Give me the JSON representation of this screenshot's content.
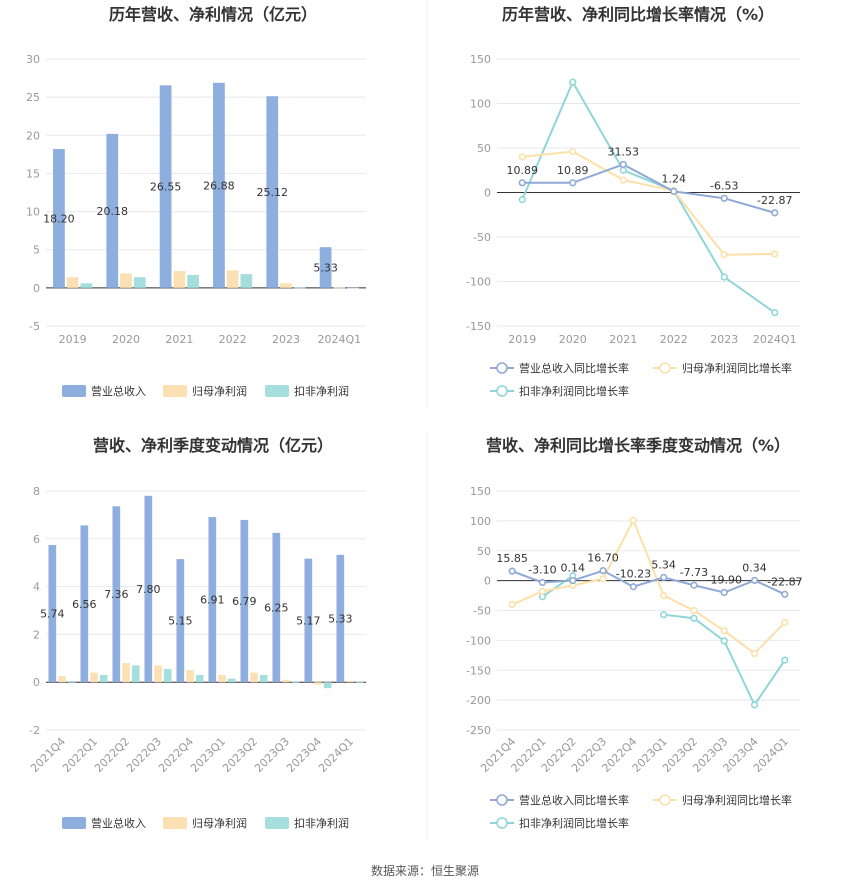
{
  "source": "数据来源：恒生聚源",
  "colors": {
    "revenue": "#8eaedd",
    "net_profit": "#fbe0b4",
    "deducted_profit": "#a5dedd",
    "revenue_line": "#8fa9d6",
    "net_line": "#fde0a8",
    "deducted_line": "#8fd6d8"
  },
  "chart_data": [
    {
      "type": "bar",
      "title": "历年营收、净利情况（亿元）",
      "categories": [
        "2019",
        "2020",
        "2021",
        "2022",
        "2023",
        "2024Q1"
      ],
      "ylim": [
        -5,
        30
      ],
      "yticks": [
        -5,
        0,
        5,
        10,
        15,
        20,
        25,
        30
      ],
      "grid": true,
      "legend_position": "bottom",
      "series": [
        {
          "name": "营业总收入",
          "values": [
            18.2,
            20.18,
            26.55,
            26.88,
            25.12,
            5.33
          ],
          "labels": [
            "18.20",
            "20.18",
            "26.55",
            "26.88",
            "25.12",
            "5.33"
          ]
        },
        {
          "name": "归母净利润",
          "values": [
            1.4,
            1.9,
            2.2,
            2.3,
            0.6,
            0.05
          ]
        },
        {
          "name": "扣非净利润",
          "values": [
            0.6,
            1.4,
            1.7,
            1.8,
            0.05,
            0.02
          ]
        }
      ]
    },
    {
      "type": "line",
      "title": "历年营收、净利同比增长率情况（%）",
      "categories": [
        "2019",
        "2020",
        "2021",
        "2022",
        "2023",
        "2024Q1"
      ],
      "ylim": [
        -150,
        150
      ],
      "yticks": [
        -150,
        -100,
        -50,
        0,
        50,
        100,
        150
      ],
      "grid": true,
      "legend_position": "bottom",
      "series": [
        {
          "name": "营业总收入同比增长率",
          "values": [
            10.89,
            10.89,
            31.53,
            1.24,
            -6.53,
            -22.87
          ],
          "labels": [
            "10.89",
            "10.89",
            "31.53",
            "1.24",
            "-6.53",
            "-22.87"
          ]
        },
        {
          "name": "归母净利润同比增长率",
          "values": [
            40,
            46,
            14,
            2,
            -70,
            -69
          ]
        },
        {
          "name": "扣非净利润同比增长率",
          "values": [
            -8,
            124,
            25,
            2,
            -95,
            -135
          ]
        }
      ]
    },
    {
      "type": "bar",
      "title": "营收、净利季度变动情况（亿元）",
      "categories": [
        "2021Q4",
        "2022Q1",
        "2022Q2",
        "2022Q3",
        "2022Q4",
        "2023Q1",
        "2023Q2",
        "2023Q3",
        "2023Q4",
        "2024Q1"
      ],
      "ylim": [
        -2,
        8
      ],
      "yticks": [
        -2,
        0,
        2,
        4,
        6,
        8
      ],
      "grid": true,
      "legend_position": "bottom",
      "series": [
        {
          "name": "营业总收入",
          "values": [
            5.74,
            6.56,
            7.36,
            7.8,
            5.15,
            6.91,
            6.79,
            6.25,
            5.17,
            5.33
          ],
          "labels": [
            "5.74",
            "6.56",
            "7.36",
            "7.80",
            "5.15",
            "6.91",
            "6.79",
            "6.25",
            "5.17",
            "5.33"
          ]
        },
        {
          "name": "归母净利润",
          "values": [
            0.25,
            0.4,
            0.8,
            0.7,
            0.5,
            0.3,
            0.4,
            0.1,
            -0.1,
            0.05
          ]
        },
        {
          "name": "扣非净利润",
          "values": [
            0.0,
            0.3,
            0.7,
            0.55,
            0.3,
            0.15,
            0.3,
            0.02,
            -0.25,
            0.02
          ]
        }
      ]
    },
    {
      "type": "line",
      "title": "营收、净利同比增长率季度变动情况（%）",
      "categories": [
        "2021Q4",
        "2022Q1",
        "2022Q2",
        "2022Q3",
        "2022Q4",
        "2023Q1",
        "2023Q2",
        "2023Q3",
        "2023Q4",
        "2024Q1"
      ],
      "ylim": [
        -250,
        150
      ],
      "yticks": [
        -250,
        -200,
        -150,
        -100,
        -50,
        0,
        50,
        100,
        150
      ],
      "grid": true,
      "legend_position": "bottom",
      "series": [
        {
          "name": "营业总收入同比增长率",
          "values": [
            15.85,
            -3.1,
            0.14,
            16.7,
            -10.23,
            5.34,
            -7.73,
            -19.9,
            0.34,
            -22.87
          ],
          "labels": [
            "15.85",
            "-3.10",
            "0.14",
            "16.70",
            "-10.23",
            "5.34",
            "-7.73",
            "-19.90",
            "0.34",
            "-22.87"
          ]
        },
        {
          "name": "归母净利润同比增长率",
          "values": [
            -40,
            -18,
            -8,
            3,
            101,
            -25,
            -50,
            -84,
            -122,
            -70
          ]
        },
        {
          "name": "扣非净利润同比增长率",
          "values": [
            null,
            -27,
            8,
            null,
            null,
            -57,
            -63,
            -101,
            -208,
            -133
          ]
        }
      ]
    }
  ]
}
